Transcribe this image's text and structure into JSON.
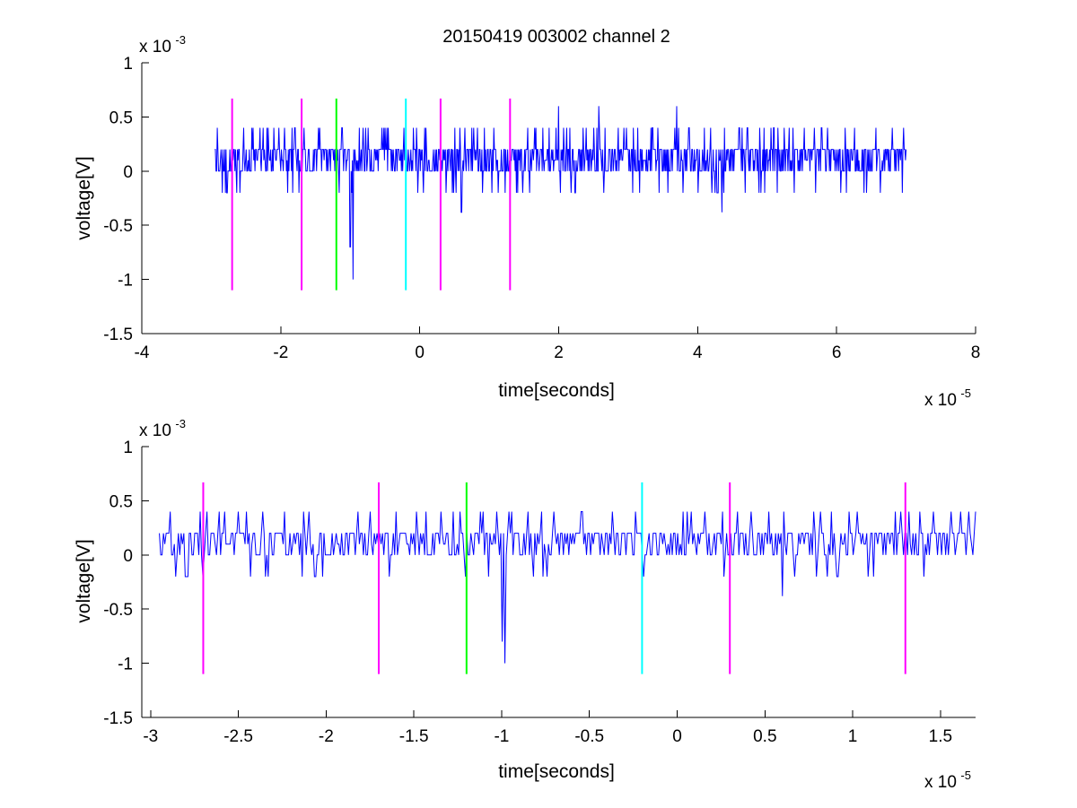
{
  "figure": {
    "title": "20150419 003002 channel 2"
  },
  "chart_data": [
    {
      "type": "line",
      "xlabel": "time[seconds]",
      "ylabel": "voltage[V]",
      "x_scale_label": {
        "base": "x 10",
        "exp": "-5"
      },
      "y_scale_label": {
        "base": "x 10",
        "exp": "-3"
      },
      "xlim": [
        -4,
        8
      ],
      "ylim": [
        -1.5,
        1
      ],
      "x_ticks": [
        "-4",
        "-2",
        "0",
        "2",
        "4",
        "6",
        "8"
      ],
      "y_ticks": [
        "-1.5",
        "-1",
        "-0.5",
        "0",
        "0.5",
        "1"
      ],
      "x_tick_values": [
        -4,
        -2,
        0,
        2,
        4,
        6,
        8
      ],
      "y_tick_values": [
        -1.5,
        -1,
        -0.5,
        0,
        0.5,
        1
      ],
      "signal": {
        "color": "#0000ff",
        "x_range": [
          -2.95,
          7.0
        ],
        "baseline_levels": [
          0,
          0.2
        ],
        "spikes": [
          {
            "x": -0.96,
            "y": -1.0
          },
          {
            "x": -1.0,
            "y": -0.7
          },
          {
            "x": 0.6,
            "y": -0.38
          },
          {
            "x": 4.35,
            "y": -0.38
          },
          {
            "x": 3.7,
            "y": 0.6
          },
          {
            "x": 2.58,
            "y": 0.6
          },
          {
            "x": 2.0,
            "y": 0.6
          }
        ]
      },
      "markers": [
        {
          "x": -2.7,
          "color": "#ff00ff",
          "y_range": [
            -1.1,
            0.67
          ]
        },
        {
          "x": -1.7,
          "color": "#ff00ff",
          "y_range": [
            -1.1,
            0.67
          ]
        },
        {
          "x": -1.2,
          "color": "#00ff00",
          "y_range": [
            -1.1,
            0.67
          ]
        },
        {
          "x": -0.2,
          "color": "#00ffff",
          "y_range": [
            -1.1,
            0.67
          ]
        },
        {
          "x": 0.3,
          "color": "#ff00ff",
          "y_range": [
            -1.1,
            0.67
          ]
        },
        {
          "x": 1.3,
          "color": "#ff00ff",
          "y_range": [
            -1.1,
            0.67
          ]
        }
      ]
    },
    {
      "type": "line",
      "xlabel": "time[seconds]",
      "ylabel": "voltage[V]",
      "x_scale_label": {
        "base": "x 10",
        "exp": "-5"
      },
      "y_scale_label": {
        "base": "x 10",
        "exp": "-3"
      },
      "xlim": [
        -3.05,
        1.7
      ],
      "ylim": [
        -1.5,
        1
      ],
      "x_ticks": [
        "-3",
        "-2.5",
        "-2",
        "-1.5",
        "-1",
        "-0.5",
        "0",
        "0.5",
        "1",
        "1.5"
      ],
      "y_ticks": [
        "-1.5",
        "-1",
        "-0.5",
        "0",
        "0.5",
        "1"
      ],
      "x_tick_values": [
        -3,
        -2.5,
        -2,
        -1.5,
        -1,
        -0.5,
        0,
        0.5,
        1,
        1.5
      ],
      "y_tick_values": [
        -1.5,
        -1,
        -0.5,
        0,
        0.5,
        1
      ],
      "signal": {
        "color": "#0000ff",
        "x_range": [
          -2.95,
          1.7
        ],
        "baseline_levels": [
          0,
          0.2
        ],
        "spikes": [
          {
            "x": -0.98,
            "y": -1.0
          },
          {
            "x": -1.0,
            "y": -0.8
          },
          {
            "x": 0.6,
            "y": -0.38
          },
          {
            "x": 1.32,
            "y": 0.4
          },
          {
            "x": 1.38,
            "y": 0.4
          }
        ]
      },
      "markers": [
        {
          "x": -2.7,
          "color": "#ff00ff",
          "y_range": [
            -1.1,
            0.67
          ]
        },
        {
          "x": -1.7,
          "color": "#ff00ff",
          "y_range": [
            -1.1,
            0.67
          ]
        },
        {
          "x": -1.2,
          "color": "#00ff00",
          "y_range": [
            -1.1,
            0.67
          ]
        },
        {
          "x": -0.2,
          "color": "#00ffff",
          "y_range": [
            -1.1,
            0.67
          ]
        },
        {
          "x": 0.3,
          "color": "#ff00ff",
          "y_range": [
            -1.1,
            0.67
          ]
        },
        {
          "x": 1.3,
          "color": "#ff00ff",
          "y_range": [
            -1.1,
            0.67
          ]
        }
      ]
    }
  ]
}
